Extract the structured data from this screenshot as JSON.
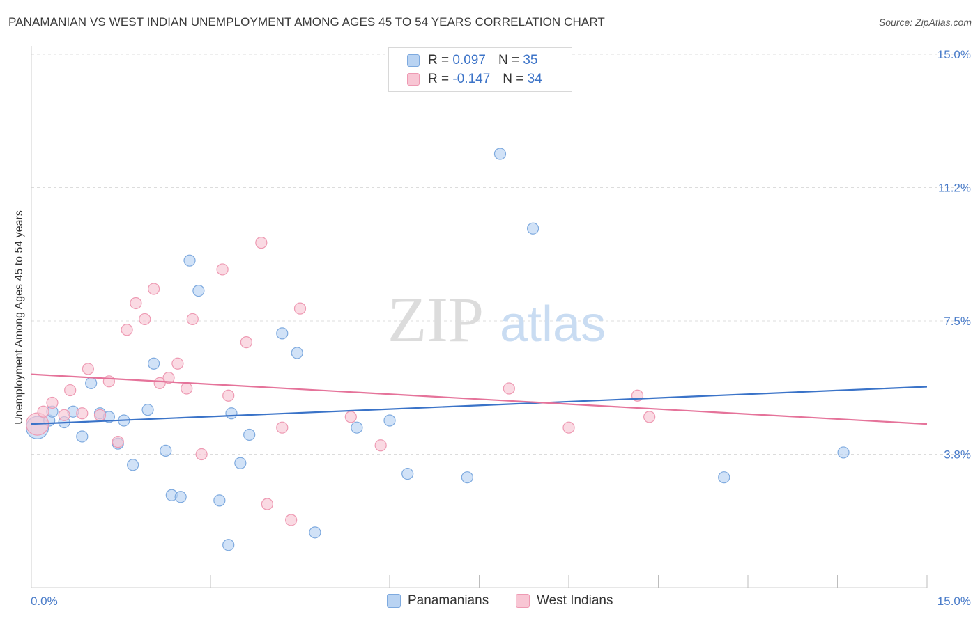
{
  "title": "PANAMANIAN VS WEST INDIAN UNEMPLOYMENT AMONG AGES 45 TO 54 YEARS CORRELATION CHART",
  "source": "Source: ZipAtlas.com",
  "watermark": {
    "zip": "ZIP",
    "atlas": "atlas"
  },
  "legend": {
    "rows": [
      {
        "r_label": "R =",
        "r_value": "0.097",
        "n_label": "N =",
        "n_value": "35"
      },
      {
        "r_label": "R =",
        "r_value": "-0.147",
        "n_label": "N =",
        "n_value": "34"
      }
    ]
  },
  "bottom_legend": {
    "series1": "Panamanians",
    "series2": "West Indians"
  },
  "colors": {
    "blue_fill": "#b9d3f2",
    "blue_stroke": "#7eaadf",
    "blue_line": "#3a73c8",
    "pink_fill": "#f8c6d4",
    "pink_stroke": "#ee9ab3",
    "pink_line": "#e5739a",
    "tick_text": "#4a7cc9",
    "grid": "#dcdcdc"
  },
  "chart_data": {
    "type": "scatter",
    "title": "PANAMANIAN VS WEST INDIAN UNEMPLOYMENT AMONG AGES 45 TO 54 YEARS CORRELATION CHART",
    "xlabel": "",
    "ylabel": "Unemployment Among Ages 45 to 54 years",
    "xlim": [
      0,
      15
    ],
    "ylim": [
      0,
      15
    ],
    "x_tick_labels": [
      {
        "value": 0,
        "label": "0.0%"
      },
      {
        "value": 15,
        "label": "15.0%"
      }
    ],
    "y_tick_labels": [
      {
        "value": 3.75,
        "label": "3.8%"
      },
      {
        "value": 7.5,
        "label": "7.5%"
      },
      {
        "value": 11.25,
        "label": "11.2%"
      },
      {
        "value": 15,
        "label": "15.0%"
      }
    ],
    "x_minor_ticks": [
      1.5,
      3.0,
      4.5,
      6.0,
      7.5,
      9.0,
      10.5,
      12.0,
      13.5,
      15.0
    ],
    "series": [
      {
        "name": "Panamanians",
        "color": "blue",
        "trend": {
          "x": [
            0,
            15
          ],
          "y": [
            4.6,
            5.65
          ]
        },
        "points": [
          {
            "x": 0.1,
            "y": 4.5,
            "big": true
          },
          {
            "x": 0.3,
            "y": 4.7
          },
          {
            "x": 0.35,
            "y": 4.95
          },
          {
            "x": 0.55,
            "y": 4.65
          },
          {
            "x": 0.7,
            "y": 4.95
          },
          {
            "x": 0.85,
            "y": 4.25
          },
          {
            "x": 1.0,
            "y": 5.75
          },
          {
            "x": 1.15,
            "y": 4.9
          },
          {
            "x": 1.3,
            "y": 4.8
          },
          {
            "x": 1.45,
            "y": 4.05
          },
          {
            "x": 1.55,
            "y": 4.7
          },
          {
            "x": 1.7,
            "y": 3.45
          },
          {
            "x": 1.95,
            "y": 5.0
          },
          {
            "x": 2.05,
            "y": 6.3
          },
          {
            "x": 2.25,
            "y": 3.85
          },
          {
            "x": 2.35,
            "y": 2.6
          },
          {
            "x": 2.5,
            "y": 2.55
          },
          {
            "x": 2.65,
            "y": 9.2
          },
          {
            "x": 2.8,
            "y": 8.35
          },
          {
            "x": 3.15,
            "y": 2.45
          },
          {
            "x": 3.3,
            "y": 1.2
          },
          {
            "x": 3.35,
            "y": 4.9
          },
          {
            "x": 3.5,
            "y": 3.5
          },
          {
            "x": 3.65,
            "y": 4.3
          },
          {
            "x": 4.2,
            "y": 7.15
          },
          {
            "x": 4.45,
            "y": 6.6
          },
          {
            "x": 4.75,
            "y": 1.55
          },
          {
            "x": 5.45,
            "y": 4.5
          },
          {
            "x": 6.0,
            "y": 4.7
          },
          {
            "x": 6.3,
            "y": 3.2
          },
          {
            "x": 7.3,
            "y": 3.1
          },
          {
            "x": 7.85,
            "y": 12.2
          },
          {
            "x": 8.4,
            "y": 10.1
          },
          {
            "x": 11.6,
            "y": 3.1
          },
          {
            "x": 13.6,
            "y": 3.8
          }
        ]
      },
      {
        "name": "West Indians",
        "color": "pink",
        "trend": {
          "x": [
            0,
            15
          ],
          "y": [
            6.0,
            4.6
          ]
        },
        "points": [
          {
            "x": 0.1,
            "y": 4.6,
            "big": true
          },
          {
            "x": 0.2,
            "y": 4.95
          },
          {
            "x": 0.35,
            "y": 5.2
          },
          {
            "x": 0.55,
            "y": 4.85
          },
          {
            "x": 0.65,
            "y": 5.55
          },
          {
            "x": 0.85,
            "y": 4.9
          },
          {
            "x": 0.95,
            "y": 6.15
          },
          {
            "x": 1.15,
            "y": 4.85
          },
          {
            "x": 1.3,
            "y": 5.8
          },
          {
            "x": 1.45,
            "y": 4.1
          },
          {
            "x": 1.6,
            "y": 7.25
          },
          {
            "x": 1.75,
            "y": 8.0
          },
          {
            "x": 1.9,
            "y": 7.55
          },
          {
            "x": 2.05,
            "y": 8.4
          },
          {
            "x": 2.15,
            "y": 5.75
          },
          {
            "x": 2.3,
            "y": 5.9
          },
          {
            "x": 2.45,
            "y": 6.3
          },
          {
            "x": 2.6,
            "y": 5.6
          },
          {
            "x": 2.7,
            "y": 7.55
          },
          {
            "x": 2.85,
            "y": 3.75
          },
          {
            "x": 3.2,
            "y": 8.95
          },
          {
            "x": 3.3,
            "y": 5.4
          },
          {
            "x": 3.6,
            "y": 6.9
          },
          {
            "x": 3.85,
            "y": 9.7
          },
          {
            "x": 3.95,
            "y": 2.35
          },
          {
            "x": 4.2,
            "y": 4.5
          },
          {
            "x": 4.35,
            "y": 1.9
          },
          {
            "x": 4.5,
            "y": 7.85
          },
          {
            "x": 5.35,
            "y": 4.8
          },
          {
            "x": 5.85,
            "y": 4.0
          },
          {
            "x": 8.0,
            "y": 5.6
          },
          {
            "x": 9.0,
            "y": 4.5
          },
          {
            "x": 10.15,
            "y": 5.4
          },
          {
            "x": 10.35,
            "y": 4.8
          }
        ]
      }
    ]
  }
}
